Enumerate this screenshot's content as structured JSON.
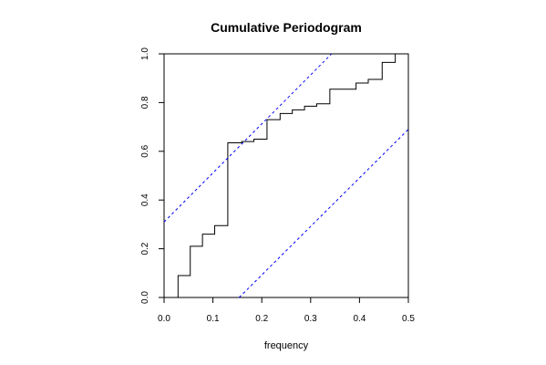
{
  "chart_data": {
    "type": "line",
    "title": "Cumulative Periodogram",
    "xlabel": "frequency",
    "ylabel": "",
    "xlim": [
      0,
      0.5
    ],
    "ylim": [
      0,
      1
    ],
    "xticks": [
      "0.0",
      "0.1",
      "0.2",
      "0.3",
      "0.4",
      "0.5"
    ],
    "yticks": [
      "0.0",
      "0.2",
      "0.4",
      "0.6",
      "0.8",
      "1.0"
    ],
    "grid": false,
    "legend": "none",
    "series": [
      {
        "style": "step",
        "color": "#000000",
        "x": [
          0.0286,
          0.0536,
          0.0786,
          0.1036,
          0.1304,
          0.1589,
          0.1839,
          0.2107,
          0.2375,
          0.2625,
          0.2875,
          0.3125,
          0.3393,
          0.3929,
          0.4179,
          0.4464,
          0.4732
        ],
        "y": [
          0.09,
          0.21,
          0.26,
          0.295,
          0.635,
          0.64,
          0.65,
          0.73,
          0.755,
          0.77,
          0.785,
          0.795,
          0.855,
          0.88,
          0.895,
          0.965,
          1.0
        ]
      },
      {
        "style": "dashed",
        "color": "#0000ff",
        "x": [
          0.0,
          0.3429
        ],
        "y": [
          0.31,
          1.0
        ]
      },
      {
        "style": "dashed",
        "color": "#0000ff",
        "x": [
          0.1536,
          0.5
        ],
        "y": [
          0.0,
          0.69
        ]
      }
    ]
  }
}
